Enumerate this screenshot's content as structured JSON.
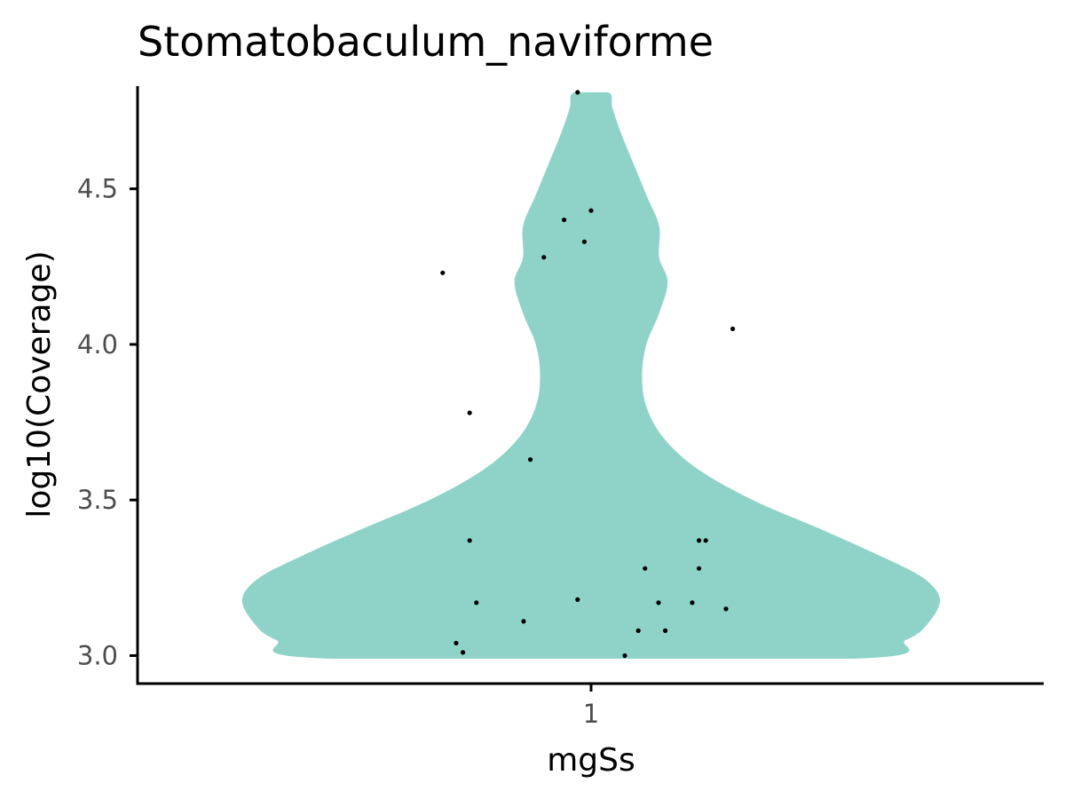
{
  "chart_data": {
    "type": "violin",
    "title": "Stomatobaculum_naviforme",
    "xlabel": "mgSs",
    "ylabel": "log10(Coverage)",
    "categories": [
      "1"
    ],
    "y_ticks": [
      3.0,
      3.5,
      4.0,
      4.5
    ],
    "y_tick_labels": [
      "3.0",
      "3.5",
      "4.0",
      "4.5"
    ],
    "ylim": [
      2.91,
      4.83
    ],
    "fill_color": "#8fd3c8",
    "point_color": "#000000",
    "grid": false,
    "violin_profile": [
      {
        "y": 2.99,
        "w": 0.61
      },
      {
        "y": 3.05,
        "w": 0.74
      },
      {
        "y": 3.1,
        "w": 0.79
      },
      {
        "y": 3.18,
        "w": 0.82
      },
      {
        "y": 3.25,
        "w": 0.78
      },
      {
        "y": 3.32,
        "w": 0.68
      },
      {
        "y": 3.4,
        "w": 0.55
      },
      {
        "y": 3.5,
        "w": 0.38
      },
      {
        "y": 3.6,
        "w": 0.25
      },
      {
        "y": 3.7,
        "w": 0.17
      },
      {
        "y": 3.8,
        "w": 0.13
      },
      {
        "y": 3.9,
        "w": 0.12
      },
      {
        "y": 4.0,
        "w": 0.13
      },
      {
        "y": 4.1,
        "w": 0.16
      },
      {
        "y": 4.2,
        "w": 0.18
      },
      {
        "y": 4.28,
        "w": 0.16
      },
      {
        "y": 4.38,
        "w": 0.16
      },
      {
        "y": 4.48,
        "w": 0.13
      },
      {
        "y": 4.58,
        "w": 0.1
      },
      {
        "y": 4.68,
        "w": 0.07
      },
      {
        "y": 4.76,
        "w": 0.05
      },
      {
        "y": 4.81,
        "w": 0.04
      }
    ],
    "points": [
      {
        "x": -0.02,
        "y": 4.81
      },
      {
        "x": 0.0,
        "y": 4.43
      },
      {
        "x": -0.04,
        "y": 4.4
      },
      {
        "x": -0.01,
        "y": 4.33
      },
      {
        "x": -0.07,
        "y": 4.28
      },
      {
        "x": -0.22,
        "y": 4.23
      },
      {
        "x": 0.21,
        "y": 4.05
      },
      {
        "x": -0.18,
        "y": 3.78
      },
      {
        "x": -0.09,
        "y": 3.63
      },
      {
        "x": -0.18,
        "y": 3.37
      },
      {
        "x": 0.16,
        "y": 3.37
      },
      {
        "x": 0.17,
        "y": 3.37
      },
      {
        "x": 0.08,
        "y": 3.28
      },
      {
        "x": 0.16,
        "y": 3.28
      },
      {
        "x": -0.02,
        "y": 3.18
      },
      {
        "x": -0.17,
        "y": 3.17
      },
      {
        "x": 0.1,
        "y": 3.17
      },
      {
        "x": 0.15,
        "y": 3.17
      },
      {
        "x": 0.2,
        "y": 3.15
      },
      {
        "x": -0.1,
        "y": 3.11
      },
      {
        "x": 0.07,
        "y": 3.08
      },
      {
        "x": 0.11,
        "y": 3.08
      },
      {
        "x": -0.2,
        "y": 3.04
      },
      {
        "x": -0.19,
        "y": 3.01
      },
      {
        "x": 0.05,
        "y": 3.0
      }
    ]
  }
}
